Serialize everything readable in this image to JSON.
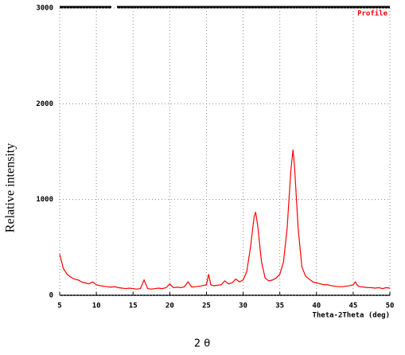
{
  "chart_data": {
    "type": "line",
    "x_label": "Theta-2Theta (deg)",
    "y_label": "Relative intensity",
    "caption": "2 θ",
    "xlim": [
      5,
      50
    ],
    "xticks": [
      5,
      10,
      15,
      20,
      25,
      30,
      35,
      40,
      45,
      50
    ],
    "ylim": [
      0,
      3000
    ],
    "yticks": [
      0,
      1000,
      2000,
      3000
    ],
    "grid": true,
    "legend": "upper right",
    "x": [
      5,
      5.5,
      6,
      6.5,
      7,
      7.5,
      8,
      8.5,
      9,
      9.5,
      10,
      10.5,
      11,
      11.5,
      12,
      12.5,
      13,
      13.5,
      14,
      14.5,
      15,
      15.5,
      16,
      16.5,
      17,
      17.5,
      18,
      18.5,
      19,
      19.5,
      20,
      20.5,
      21,
      21.5,
      22,
      22.5,
      23,
      23.5,
      24,
      24.5,
      25,
      25.3,
      25.6,
      26,
      26.5,
      27,
      27.5,
      28,
      28.5,
      29,
      29.5,
      30,
      30.5,
      31,
      31.5,
      31.7,
      32,
      32.5,
      33,
      33.5,
      34,
      34.5,
      35,
      35.5,
      36,
      36.5,
      36.8,
      37,
      37.5,
      38,
      38.5,
      39,
      39.5,
      40,
      40.5,
      41,
      41.5,
      42,
      42.5,
      43,
      43.5,
      44,
      44.5,
      45,
      45.3,
      45.6,
      46,
      46.5,
      47,
      47.5,
      48,
      48.5,
      49,
      49.5,
      50
    ],
    "series": [
      {
        "name": "Profile",
        "color": "#ff0000",
        "values": [
          430,
          280,
          220,
          190,
          170,
          160,
          140,
          130,
          120,
          140,
          110,
          100,
          95,
          90,
          85,
          90,
          80,
          75,
          70,
          75,
          70,
          65,
          70,
          160,
          70,
          65,
          70,
          75,
          70,
          80,
          120,
          80,
          85,
          80,
          90,
          140,
          85,
          90,
          95,
          100,
          110,
          220,
          110,
          100,
          105,
          110,
          150,
          120,
          130,
          170,
          140,
          160,
          250,
          500,
          820,
          870,
          720,
          350,
          180,
          150,
          160,
          180,
          220,
          350,
          700,
          1300,
          1520,
          1350,
          700,
          300,
          200,
          170,
          140,
          130,
          120,
          110,
          110,
          100,
          95,
          90,
          90,
          95,
          100,
          110,
          140,
          100,
          90,
          85,
          80,
          80,
          75,
          80,
          70,
          80,
          75
        ]
      }
    ]
  }
}
